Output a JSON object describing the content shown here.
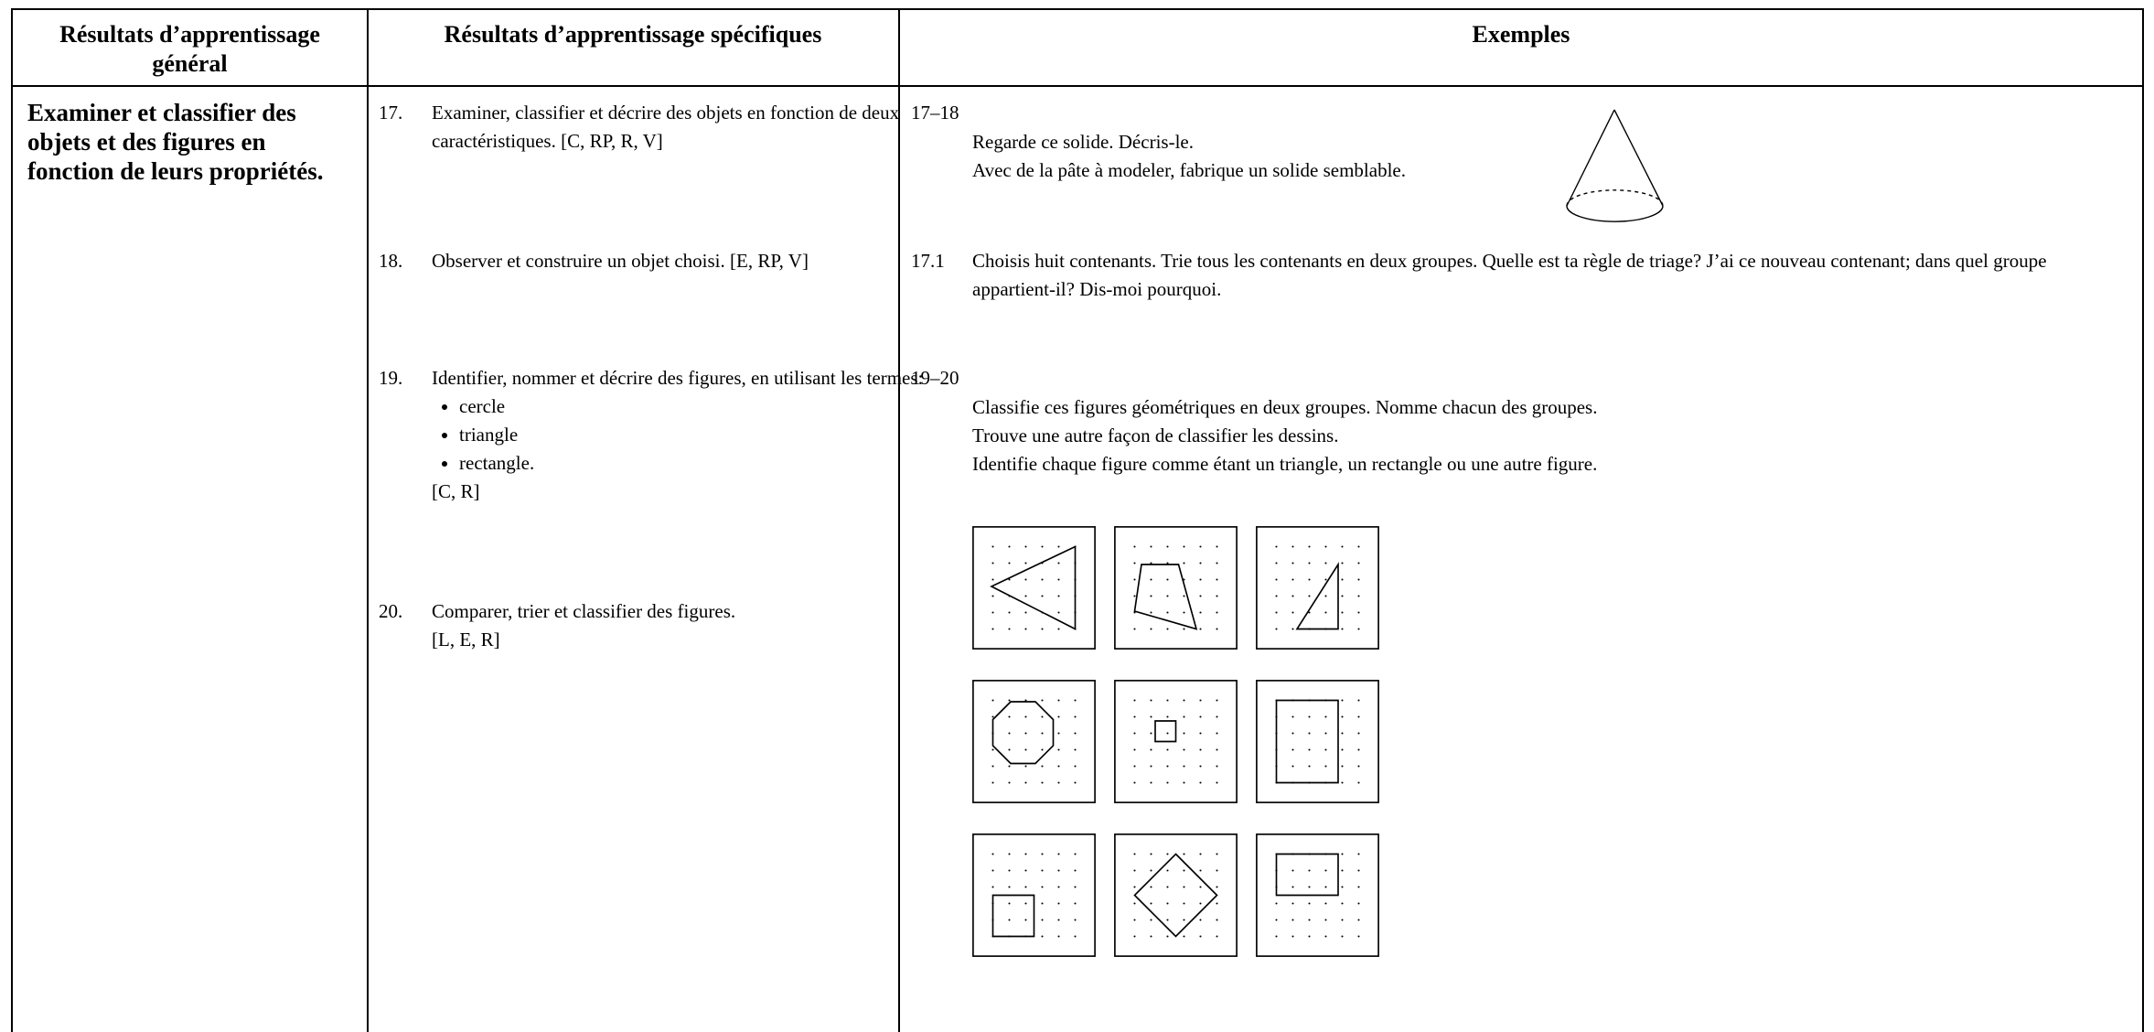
{
  "header": {
    "general": "Résultats d’apprentissage général",
    "specific": "Résultats d’apprentissage spécifiques",
    "examples": "Exemples"
  },
  "general_outcome": "Examiner et classifier des objets et des figures en fonction de leurs propriétés.",
  "outcomes": [
    {
      "number": "17.",
      "text": "Examiner, classifier et décrire des objets en fonction de deux caractéristiques. [C, RP, R, V]"
    },
    {
      "number": "18.",
      "text": "Observer et construire un objet choisi. [E, RP, V]"
    },
    {
      "number": "19.",
      "text": "Identifier, nommer et décrire des figures, en utilisant les termes:",
      "bullets": [
        "cercle",
        "triangle",
        "rectangle."
      ],
      "codes": "[C, R]"
    },
    {
      "number": "20.",
      "text": "Comparer, trier et classifier des figures.",
      "codes": "[L, E, R]"
    }
  ],
  "examples": [
    {
      "label": "17–18",
      "lines": [
        "Regarde ce solide. Décris-le.",
        "Avec de la pâte à modeler, fabrique un solide semblable."
      ]
    },
    {
      "label": "17.1",
      "text": "Choisis huit contenants. Trie tous les contenants en deux groupes. Quelle est ta règle de triage? J’ai ce nouveau contenant; dans quel groupe appartient-il? Dis-moi pourquoi."
    },
    {
      "label": "19–20",
      "lines": [
        "Classifie ces figures géométriques en deux groupes. Nomme chacun des groupes.",
        "Trouve une autre façon de classifier les dessins.",
        "Identifie chaque figure comme étant un triangle, un rectangle ou une autre figure."
      ]
    }
  ]
}
